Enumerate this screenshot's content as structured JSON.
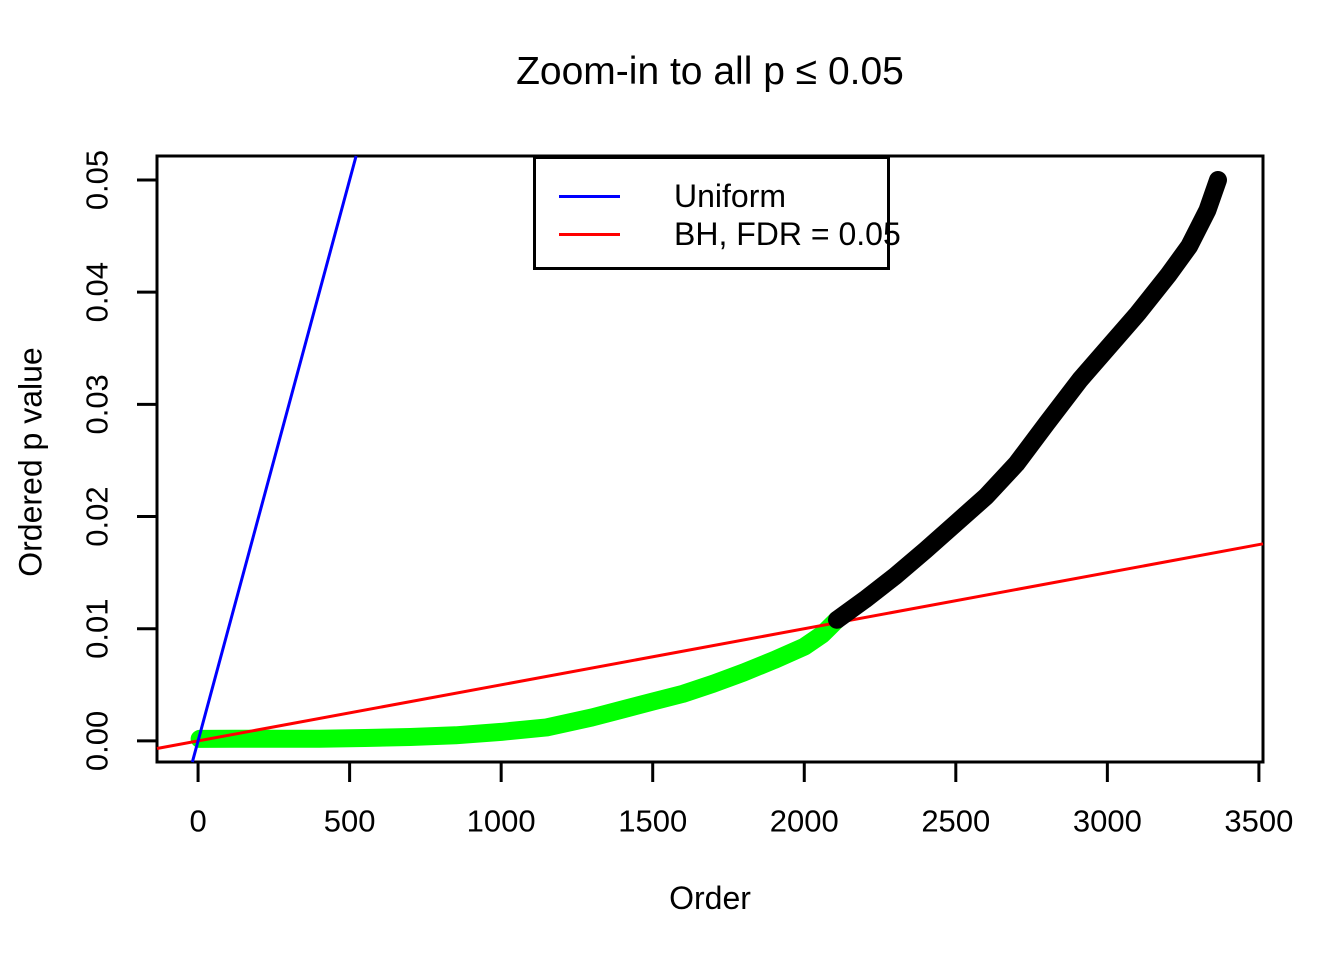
{
  "title": "Zoom-in to all p ≤ 0.05",
  "chart_data": {
    "type": "scatter",
    "title": "Zoom-in to all p ≤ 0.05",
    "xlabel": "Order",
    "ylabel": "Ordered p value",
    "xlim": [
      -135.5,
      3513.5
    ],
    "ylim": [
      -0.00188,
      0.05214
    ],
    "grid": false,
    "x_ticks": [
      0,
      500,
      1000,
      1500,
      2000,
      2500,
      3000,
      3500
    ],
    "x_tick_labels": [
      "0",
      "500",
      "1000",
      "1500",
      "2000",
      "2500",
      "3000",
      "3500"
    ],
    "y_ticks": [
      0.0,
      0.01,
      0.02,
      0.03,
      0.04,
      0.05
    ],
    "y_tick_labels": [
      "0.00",
      "0.01",
      "0.02",
      "0.03",
      "0.04",
      "0.05"
    ],
    "colors": {
      "uniform_line": "#0000FF",
      "bh_line": "#FF0000",
      "significant_points": "#00FF00",
      "nonsignificant_points": "#000000",
      "axis": "#000000"
    },
    "series": [
      {
        "name": "ordered-p-values-bh-significant",
        "type": "thick_point_run",
        "color": "#00FF00",
        "points": [
          [
            5,
            0.00018
          ],
          [
            120,
            0.0002
          ],
          [
            250,
            0.0002
          ],
          [
            400,
            0.0002
          ],
          [
            550,
            0.00026
          ],
          [
            700,
            0.00035
          ],
          [
            850,
            0.0005
          ],
          [
            1000,
            0.0008
          ],
          [
            1150,
            0.0012
          ],
          [
            1300,
            0.0021
          ],
          [
            1400,
            0.0028
          ],
          [
            1500,
            0.0035
          ],
          [
            1600,
            0.0042
          ],
          [
            1700,
            0.0051
          ],
          [
            1800,
            0.0061
          ],
          [
            1900,
            0.0072
          ],
          [
            2000,
            0.0084
          ],
          [
            2060,
            0.0095
          ],
          [
            2108,
            0.0108
          ]
        ]
      },
      {
        "name": "reference-line-bh",
        "type": "abline",
        "label": "BH, FDR = 0.05",
        "color": "#FF0000",
        "slope": 5e-06,
        "intercept": 0
      },
      {
        "name": "reference-line-uniform",
        "type": "abline",
        "label": "Uniform",
        "color": "#0000FF",
        "slope": 0.0001,
        "intercept": 0
      },
      {
        "name": "ordered-p-values-not-significant",
        "type": "thick_point_run",
        "color": "#000000",
        "points": [
          [
            2108,
            0.0108
          ],
          [
            2200,
            0.0126
          ],
          [
            2300,
            0.0147
          ],
          [
            2400,
            0.017
          ],
          [
            2500,
            0.0194
          ],
          [
            2600,
            0.0218
          ],
          [
            2700,
            0.0247
          ],
          [
            2800,
            0.0283
          ],
          [
            2910,
            0.0322
          ],
          [
            3000,
            0.035
          ],
          [
            3100,
            0.0381
          ],
          [
            3200,
            0.0415
          ],
          [
            3270,
            0.0441
          ],
          [
            3330,
            0.0473
          ],
          [
            3365,
            0.05
          ]
        ]
      }
    ],
    "legend": {
      "position": "top-left-inside",
      "entries": [
        {
          "label": "Uniform",
          "color": "#0000FF"
        },
        {
          "label": "BH, FDR = 0.05",
          "color": "#FF0000"
        }
      ]
    }
  }
}
